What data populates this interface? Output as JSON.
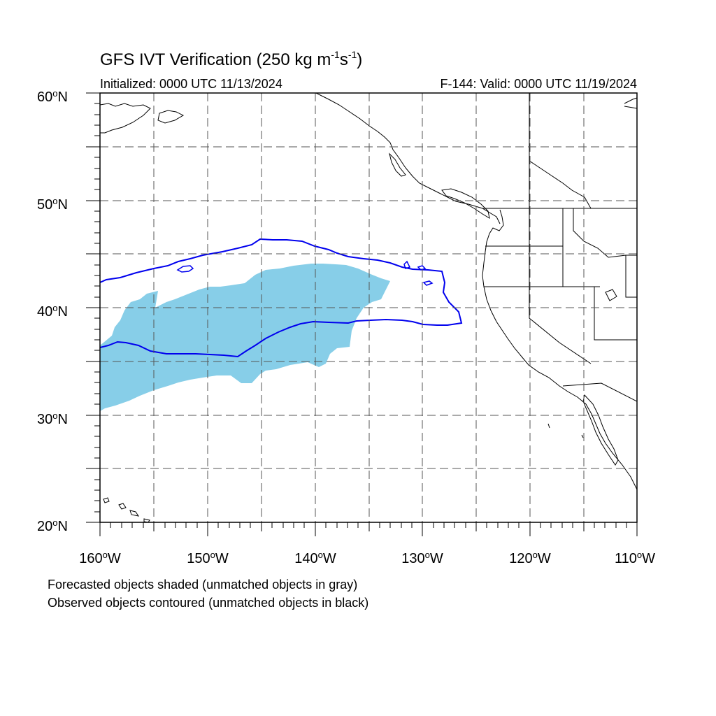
{
  "title": {
    "main": "GFS IVT Verification (250 kg m",
    "sup1": "-1",
    "mid": "s",
    "sup2": "-1",
    "end": ")"
  },
  "subtitle": {
    "initialized": "Initialized: 0000 UTC 11/13/2024",
    "valid": "F-144: Valid: 0000 UTC 11/19/2024"
  },
  "map": {
    "lon_range": [
      -160,
      -110
    ],
    "lat_range": [
      20,
      60
    ],
    "grid_lines": true,
    "lat_labels": [
      {
        "value": "60",
        "suffix": "N"
      },
      {
        "value": "50",
        "suffix": "N"
      },
      {
        "value": "40",
        "suffix": "N"
      },
      {
        "value": "30",
        "suffix": "N"
      },
      {
        "value": "20",
        "suffix": "N"
      }
    ],
    "lon_labels": [
      {
        "value": "160",
        "suffix": "W"
      },
      {
        "value": "150",
        "suffix": "W"
      },
      {
        "value": "140",
        "suffix": "W"
      },
      {
        "value": "130",
        "suffix": "W"
      },
      {
        "value": "120",
        "suffix": "W"
      },
      {
        "value": "110",
        "suffix": "W"
      }
    ],
    "forecast_fill_color": "#87CEE8",
    "observed_contour_color": "#0000EE",
    "coastline_color": "#000000"
  },
  "legend": {
    "line1": "Forecasted objects shaded (unmatched objects in gray)",
    "line2": "Observed objects contoured (unmatched objects in black)"
  }
}
